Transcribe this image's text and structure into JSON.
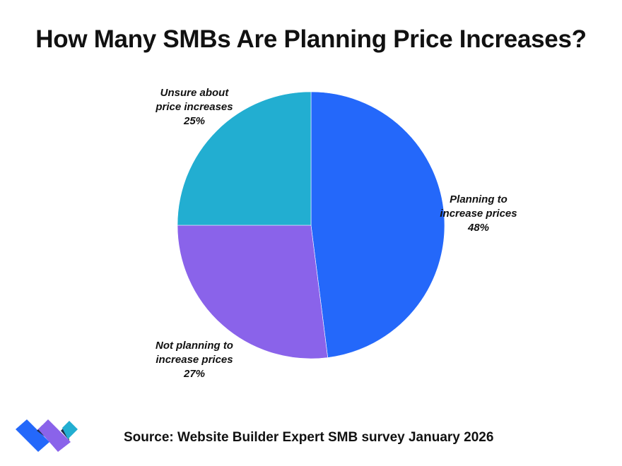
{
  "chart_data": {
    "type": "pie",
    "title": "How Many SMBs Are Planning Price Increases?",
    "slices": [
      {
        "label_lines": [
          "Planning to",
          "increase prices"
        ],
        "value": 48,
        "value_label": "48%",
        "color": "#2468FA"
      },
      {
        "label_lines": [
          "Not planning to",
          "increase prices"
        ],
        "value": 27,
        "value_label": "27%",
        "color": "#8A63EA"
      },
      {
        "label_lines": [
          "Unsure about",
          "price increases"
        ],
        "value": 25,
        "value_label": "25%",
        "color": "#22AED1"
      }
    ],
    "source": "Source: Website Builder Expert SMB survey January 2026"
  },
  "logo": {
    "colors": [
      "#2468FA",
      "#8A63EA",
      "#22AED1",
      "#1F2D4D"
    ]
  }
}
